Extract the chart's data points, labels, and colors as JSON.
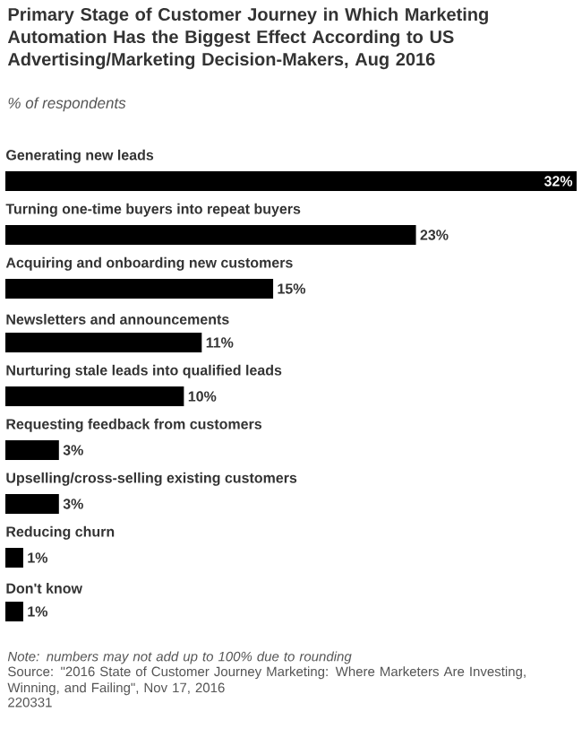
{
  "chart_data": {
    "type": "bar",
    "orientation": "horizontal",
    "title": "Primary Stage of Customer Journey in Which Marketing Automation Has the Biggest Effect According to US Advertising/Marketing Decision-Makers, Aug 2016",
    "subtitle": "% of respondents",
    "categories": [
      "Generating new leads",
      "Turning one-time buyers into repeat buyers",
      "Acquiring and onboarding new customers",
      "Newsletters and announcements",
      "Nurturing stale leads into qualified leads",
      "Requesting feedback from customers",
      "Upselling/cross-selling existing customers",
      "Reducing churn",
      "Don't know"
    ],
    "values": [
      32,
      23,
      15,
      11,
      10,
      3,
      3,
      1,
      1
    ],
    "value_labels": [
      "32%",
      "23%",
      "15%",
      "11%",
      "10%",
      "3%",
      "3%",
      "1%",
      "1%"
    ],
    "color": "#000000",
    "annotations": [
      "Note: numbers may not add up to 100% due to rounding",
      "Source: \"2016 State of Customer Journey Marketing: Where Marketers Are Investing, Winning, and Failing\", Nov 17, 2016",
      "220331"
    ]
  }
}
